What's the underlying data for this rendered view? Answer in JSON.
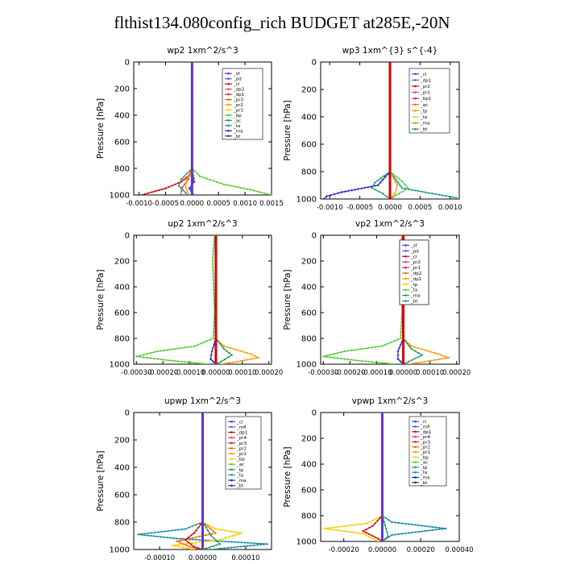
{
  "title": "flthist134.080config_rich  BUDGET at285E,-20N",
  "chart_data": [
    {
      "type": "line",
      "title": "wp2   1xm^2/s^3",
      "ylabel": "Pressure [hPa]",
      "ylim": [
        1000,
        0
      ],
      "yticks": [
        "0",
        "200",
        "400",
        "600",
        "800",
        "1000"
      ],
      "xlim": [
        -0.0011,
        0.0015
      ],
      "xticks": [
        "-0.0010",
        "-0.0005",
        "0.0000",
        "0.0005",
        "0.0010",
        "0.0015"
      ],
      "legend": [
        "_sf",
        "_pd",
        "_cl",
        "_dp2",
        "_dp1",
        "_pr3",
        "_pr2",
        "_pr1",
        "_bp",
        "_ac",
        "_ta",
        "_ma",
        "_bt"
      ],
      "series": [
        {
          "name": "_cl",
          "color": "#d40000",
          "marker": "dot",
          "y": [
            0,
            200,
            400,
            600,
            800,
            850,
            900,
            950,
            1000
          ],
          "x": [
            0,
            0,
            0,
            0,
            0,
            -5e-05,
            -0.0002,
            -0.0005,
            -0.00095
          ]
        },
        {
          "name": "_dp2",
          "color": "#e0407a",
          "marker": "dot",
          "y": [
            0,
            400,
            800,
            880,
            940,
            1000
          ],
          "x": [
            0,
            0,
            0,
            -7e-05,
            -0.00018,
            -0.00022
          ]
        },
        {
          "name": "_pr1",
          "color": "#55cc33",
          "marker": "dot",
          "y": [
            0,
            400,
            800,
            860,
            920,
            960,
            1000
          ],
          "x": [
            0,
            0,
            0,
            0.00015,
            0.0006,
            0.0011,
            0.0015
          ]
        },
        {
          "name": "_pr2",
          "color": "#ff9900",
          "marker": "dot",
          "y": [
            0,
            400,
            800,
            880,
            940,
            1000
          ],
          "x": [
            0,
            0,
            0,
            -0.0001,
            -0.00012,
            -6e-05
          ]
        },
        {
          "name": "_ac",
          "color": "#1a9966",
          "marker": "dot",
          "y": [
            0,
            400,
            800,
            880,
            930,
            1000
          ],
          "x": [
            0,
            0,
            0,
            -0.0002,
            -0.00025,
            -8e-05
          ]
        },
        {
          "name": "_ta",
          "color": "#2222cc",
          "marker": "plus",
          "y": [
            0,
            400,
            800,
            900,
            950,
            1000
          ],
          "x": [
            0,
            0,
            0,
            4e-05,
            -5e-05,
            3e-05
          ]
        },
        {
          "name": "_sf",
          "color": "#6633cc",
          "marker": "dot",
          "y": [
            0,
            200,
            400,
            600,
            800,
            1000
          ],
          "x": [
            0,
            0,
            0,
            0,
            0,
            0
          ]
        }
      ]
    },
    {
      "type": "line",
      "title": "wp3   1xm^{3} s^{-4}",
      "ylabel": "Pressure [hPa]",
      "ylim": [
        1000,
        0
      ],
      "yticks": [
        "0",
        "200",
        "400",
        "600",
        "800",
        "1000"
      ],
      "xlim": [
        -0.00115,
        0.00115
      ],
      "xticks": [
        "-0.0010",
        "-0.0005",
        "0.0000",
        "0.0005",
        "0.0010"
      ],
      "legend": [
        "_cl",
        "_dp1",
        "_pr2",
        "_pr1",
        "_bp1",
        "_ac",
        "_tp",
        "_ta",
        "_ma",
        "_bt"
      ],
      "series": [
        {
          "name": "_ta",
          "color": "#2222cc",
          "marker": "plus",
          "y": [
            0,
            400,
            800,
            900,
            950,
            980,
            1000
          ],
          "x": [
            0,
            0,
            0,
            -0.0002,
            -0.0008,
            -0.00105,
            -0.0011
          ]
        },
        {
          "name": "_tp",
          "color": "#1a9999",
          "marker": "dot",
          "y": [
            0,
            400,
            800,
            920,
            960,
            990
          ],
          "x": [
            0,
            0,
            0,
            0.0002,
            0.0007,
            0.0011
          ]
        },
        {
          "name": "_ac",
          "color": "#1a9966",
          "marker": "dot",
          "y": [
            0,
            400,
            800,
            880,
            920,
            960,
            1000
          ],
          "x": [
            0,
            0,
            0,
            -0.00025,
            -0.0003,
            -0.00012,
            0
          ]
        },
        {
          "name": "_pr1",
          "color": "#55cc33",
          "marker": "dot",
          "y": [
            0,
            400,
            800,
            870,
            920,
            960,
            1000
          ],
          "x": [
            0,
            0,
            0,
            0.0002,
            0.0003,
            0.00015,
            0
          ]
        },
        {
          "name": "_pr2",
          "color": "#ff9900",
          "marker": "dot",
          "y": [
            0,
            400,
            800,
            900,
            960,
            1000
          ],
          "x": [
            0,
            0,
            0,
            0.00012,
            8e-05,
            0
          ]
        },
        {
          "name": "_cl",
          "color": "#d40000",
          "marker": "dot",
          "y": [
            0,
            200,
            400,
            600,
            800,
            1000
          ],
          "x": [
            0,
            0,
            0,
            0,
            0,
            0
          ]
        }
      ]
    },
    {
      "type": "line",
      "title": "up2   1xm^2/s^3",
      "ylabel": "Pressure [hPa]",
      "ylim": [
        1000,
        0
      ],
      "yticks": [
        "0",
        "200",
        "400",
        "600",
        "800",
        "1000"
      ],
      "xlim": [
        -0.00031,
        0.00021
      ],
      "xticks": [
        "-0.00030",
        "-0.00020",
        "-0.00010",
        "0.00000",
        "0.00010",
        "0.00020"
      ],
      "legend": [
        "_sf",
        "_pd",
        "_cl",
        "_pr2",
        "_pr1",
        "_dp2",
        "_dp1",
        "_tp",
        "_ta",
        "_ma",
        "_bt"
      ],
      "series": [
        {
          "name": "_pr1",
          "color": "#55cc33",
          "marker": "dot",
          "y": [
            0,
            200,
            600,
            800,
            860,
            900,
            940,
            970,
            1000
          ],
          "x": [
            -5e-06,
            -1.2e-05,
            -5e-06,
            -1e-05,
            -8e-05,
            -0.00022,
            -0.0003,
            -0.00018,
            -3e-05
          ]
        },
        {
          "name": "_pr2",
          "color": "#ff9900",
          "marker": "dot",
          "y": [
            0,
            400,
            800,
            860,
            920,
            950,
            980,
            1000
          ],
          "x": [
            0,
            0,
            0,
            3e-05,
            0.00013,
            0.00016,
            8e-05,
            2e-05
          ]
        },
        {
          "name": "_dp2",
          "color": "#1a9966",
          "marker": "dot",
          "y": [
            0,
            400,
            800,
            880,
            930,
            980,
            1000
          ],
          "x": [
            0,
            0,
            0,
            3e-05,
            6e-05,
            2e-05,
            0
          ]
        },
        {
          "name": "_ta",
          "color": "#2222cc",
          "marker": "plus",
          "y": [
            0,
            400,
            800,
            900,
            960,
            1000
          ],
          "x": [
            0,
            0,
            0,
            -1.5e-05,
            -2e-05,
            0
          ]
        },
        {
          "name": "_cl",
          "color": "#d40000",
          "marker": "dot",
          "y": [
            0,
            200,
            400,
            600,
            800,
            1000
          ],
          "x": [
            0,
            0,
            0,
            0,
            0,
            0
          ]
        }
      ]
    },
    {
      "type": "line",
      "title": "vp2   1xm^2/s^3",
      "ylabel": "Pressure [hPa]",
      "ylim": [
        1000,
        0
      ],
      "yticks": [
        "0",
        "200",
        "400",
        "600",
        "800",
        "1000"
      ],
      "xlim": [
        -0.00031,
        0.00021
      ],
      "xticks": [
        "-0.00030",
        "-0.00020",
        "-0.00010",
        "0.00000",
        "0.00010",
        "0.00020"
      ],
      "legend": [
        "_sf",
        "_pd",
        "_cl",
        "_pr2",
        "_pr1",
        "_dp2",
        "_dp1",
        "_tp",
        "_ta",
        "_ma",
        "_bt"
      ],
      "series": [
        {
          "name": "_pr1",
          "color": "#55cc33",
          "marker": "dot",
          "y": [
            0,
            200,
            600,
            800,
            860,
            900,
            940,
            970,
            1000
          ],
          "x": [
            -5e-06,
            -1e-05,
            -5e-06,
            -1e-05,
            -8e-05,
            -0.00022,
            -0.0003,
            -0.00018,
            -3e-05
          ]
        },
        {
          "name": "_pr2",
          "color": "#ff9900",
          "marker": "dot",
          "y": [
            0,
            400,
            800,
            860,
            920,
            950,
            980,
            1000
          ],
          "x": [
            0,
            0,
            0,
            3e-05,
            0.00013,
            0.00017,
            8e-05,
            2e-05
          ]
        },
        {
          "name": "_dp2",
          "color": "#1a9966",
          "marker": "dot",
          "y": [
            0,
            400,
            800,
            880,
            930,
            980,
            1000
          ],
          "x": [
            0,
            0,
            0,
            3e-05,
            7e-05,
            2e-05,
            0
          ]
        },
        {
          "name": "_tp",
          "color": "#2222cc",
          "marker": "plus",
          "y": [
            0,
            180,
            220,
            800,
            900,
            960,
            1000
          ],
          "x": [
            0,
            1e-05,
            0,
            0,
            -2e-05,
            -2e-05,
            0
          ]
        },
        {
          "name": "_cl",
          "color": "#d40000",
          "marker": "dot",
          "y": [
            0,
            200,
            400,
            600,
            800,
            1000
          ],
          "x": [
            0,
            0,
            0,
            0,
            0,
            0
          ]
        }
      ]
    },
    {
      "type": "line",
      "title": "upwp   1xm^2/s^3",
      "ylabel": "Pressure [hPa]",
      "ylim": [
        1000,
        0
      ],
      "yticks": [
        "0",
        "200",
        "400",
        "600",
        "800",
        "1000"
      ],
      "xlim": [
        -0.00016,
        0.00016
      ],
      "xticks": [
        "-0.00010",
        "0.00000",
        "0.00010"
      ],
      "legend": [
        "_cl",
        "_mfl",
        "_dp1",
        "_pr4",
        "_pr3",
        "_pr2",
        "_pr1",
        "_bp",
        "_ac",
        "_tp",
        "_ta",
        "_ma",
        "_bt"
      ],
      "series": [
        {
          "name": "_ta",
          "color": "#1a8fa0",
          "marker": "dot",
          "y": [
            0,
            400,
            800,
            850,
            890,
            920,
            960,
            1000
          ],
          "x": [
            0,
            0,
            0,
            -4e-05,
            -0.00015,
            -6e-05,
            0.00015,
            2e-05
          ]
        },
        {
          "name": "_pr1",
          "color": "#ffcc00",
          "marker": "dot",
          "y": [
            0,
            400,
            800,
            850,
            880,
            930,
            970,
            1000
          ],
          "x": [
            0,
            0,
            0,
            3e-05,
            9e-05,
            4e-05,
            -7e-05,
            -2e-05
          ]
        },
        {
          "name": "_pr2",
          "color": "#ff6600",
          "marker": "dot",
          "y": [
            0,
            400,
            800,
            880,
            940,
            980,
            1000
          ],
          "x": [
            0,
            0,
            0,
            3e-05,
            -6e-05,
            -3e-05,
            0
          ]
        },
        {
          "name": "_dp1",
          "color": "#d40000",
          "marker": "dot",
          "y": [
            0,
            400,
            800,
            880,
            930,
            980,
            1000
          ],
          "x": [
            0,
            0,
            0,
            -2e-05,
            -4e-05,
            -2e-05,
            0
          ]
        },
        {
          "name": "_ac",
          "color": "#1a9966",
          "marker": "dot",
          "y": [
            0,
            400,
            800,
            900,
            960,
            1000
          ],
          "x": [
            0,
            0,
            0,
            2e-05,
            4e-05,
            0
          ]
        },
        {
          "name": "_cl",
          "color": "#6633cc",
          "marker": "dot",
          "y": [
            0,
            200,
            400,
            600,
            800,
            1000
          ],
          "x": [
            0,
            0,
            0,
            0,
            0,
            0
          ]
        }
      ]
    },
    {
      "type": "line",
      "title": "vpwp   1xm^2/s^3",
      "ylabel": "Pressure [hPa]",
      "ylim": [
        1000,
        0
      ],
      "yticks": [
        "0",
        "200",
        "400",
        "600",
        "800",
        "1000"
      ],
      "xlim": [
        -0.00032,
        0.0004
      ],
      "xticks": [
        "-0.00020",
        "0.00000",
        "0.00020",
        "0.00040"
      ],
      "legend": [
        "_cl",
        "_mfl",
        "_dp1",
        "_pr4",
        "_pr3",
        "_pr2",
        "_pr1",
        "_bp",
        "_ac",
        "_tp",
        "_ta",
        "_ma",
        "_bt"
      ],
      "series": [
        {
          "name": "_ta",
          "color": "#1a8fa0",
          "marker": "dot",
          "y": [
            0,
            400,
            800,
            850,
            900,
            950,
            1000
          ],
          "x": [
            0,
            0,
            0,
            5e-05,
            0.00033,
            5e-05,
            0
          ]
        },
        {
          "name": "_pr1",
          "color": "#ffcc00",
          "marker": "dot",
          "y": [
            0,
            400,
            800,
            860,
            900,
            940,
            1000
          ],
          "x": [
            0,
            0,
            0,
            -8e-05,
            -0.0003,
            -0.0001,
            -2e-05
          ]
        },
        {
          "name": "_dp1",
          "color": "#d40000",
          "marker": "dot",
          "y": [
            0,
            400,
            800,
            880,
            920,
            980,
            1000
          ],
          "x": [
            0,
            0,
            0,
            -5e-05,
            -0.0001,
            -2e-05,
            0
          ]
        },
        {
          "name": "_ac",
          "color": "#1a9966",
          "marker": "dot",
          "y": [
            0,
            400,
            800,
            900,
            960,
            1000
          ],
          "x": [
            0,
            0,
            0,
            2e-05,
            3e-05,
            0
          ]
        },
        {
          "name": "_cl",
          "color": "#6633cc",
          "marker": "dot",
          "y": [
            0,
            200,
            400,
            600,
            800,
            1000
          ],
          "x": [
            0,
            0,
            0,
            0,
            0,
            0
          ]
        }
      ]
    }
  ]
}
